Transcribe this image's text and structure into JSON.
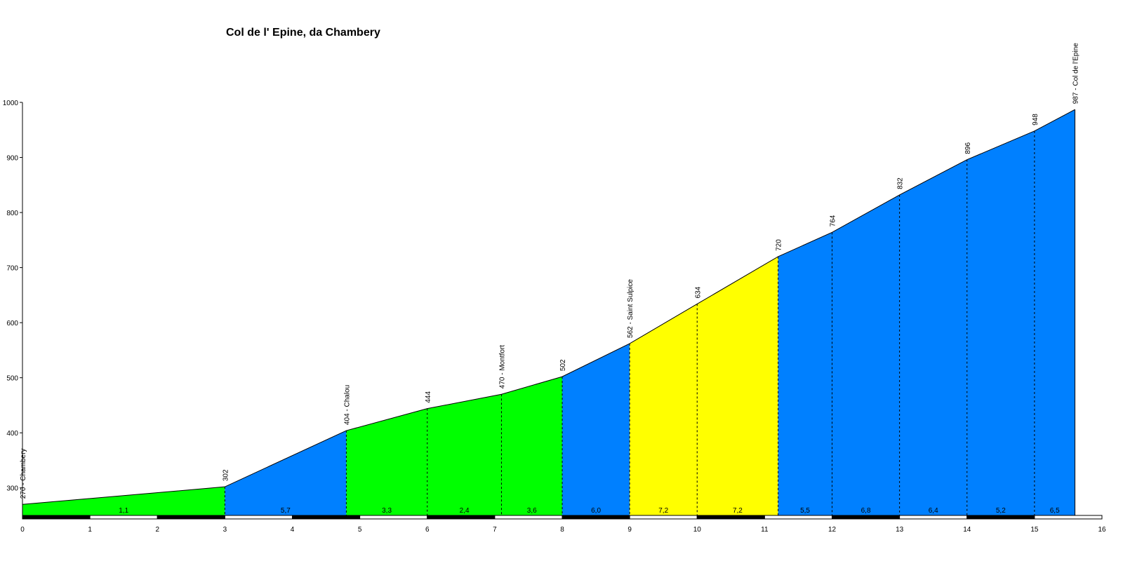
{
  "chart_data": {
    "type": "area",
    "title": "Col de l' Epine, da Chambery",
    "xlabel": "",
    "ylabel": "",
    "xlim": [
      0,
      16
    ],
    "ylim": [
      250,
      1000
    ],
    "yticks": [
      300,
      400,
      500,
      600,
      700,
      800,
      900,
      1000
    ],
    "xticks": [
      0,
      1,
      2,
      3,
      4,
      5,
      6,
      7,
      8,
      9,
      10,
      11,
      12,
      13,
      14,
      15,
      16
    ],
    "points": [
      {
        "x": 0,
        "y": 270,
        "label": "270 - Chambery"
      },
      {
        "x": 3,
        "y": 302,
        "label": "302"
      },
      {
        "x": 4.8,
        "y": 404,
        "label": "404 - Chalou"
      },
      {
        "x": 6,
        "y": 444,
        "label": "444"
      },
      {
        "x": 7.1,
        "y": 470,
        "label": "470 - Montfort"
      },
      {
        "x": 8,
        "y": 502,
        "label": "502"
      },
      {
        "x": 9,
        "y": 562,
        "label": "562 - Saint Sulpice"
      },
      {
        "x": 10,
        "y": 634,
        "label": "634"
      },
      {
        "x": 11.2,
        "y": 720,
        "label": "720"
      },
      {
        "x": 12,
        "y": 764,
        "label": "764"
      },
      {
        "x": 13,
        "y": 832,
        "label": "832"
      },
      {
        "x": 14,
        "y": 896,
        "label": "896"
      },
      {
        "x": 15,
        "y": 948,
        "label": "948"
      },
      {
        "x": 15.6,
        "y": 987,
        "label": "987 - Col de l'Epine"
      }
    ],
    "segments": [
      {
        "from": 0,
        "to": 3,
        "gradient": "1,1",
        "color": "#00ff00"
      },
      {
        "from": 3,
        "to": 4.8,
        "gradient": "5,7",
        "color": "#0080ff"
      },
      {
        "from": 4.8,
        "to": 6,
        "gradient": "3,3",
        "color": "#00ff00"
      },
      {
        "from": 6,
        "to": 7.1,
        "gradient": "2,4",
        "color": "#00ff00"
      },
      {
        "from": 7.1,
        "to": 8,
        "gradient": "3,6",
        "color": "#00ff00"
      },
      {
        "from": 8,
        "to": 9,
        "gradient": "6,0",
        "color": "#0080ff"
      },
      {
        "from": 9,
        "to": 10,
        "gradient": "7,2",
        "color": "#ffff00"
      },
      {
        "from": 10,
        "to": 11.2,
        "gradient": "7,2",
        "color": "#ffff00"
      },
      {
        "from": 11.2,
        "to": 12,
        "gradient": "5,5",
        "color": "#0080ff"
      },
      {
        "from": 12,
        "to": 13,
        "gradient": "6,8",
        "color": "#0080ff"
      },
      {
        "from": 13,
        "to": 14,
        "gradient": "6,4",
        "color": "#0080ff"
      },
      {
        "from": 14,
        "to": 15,
        "gradient": "5,2",
        "color": "#0080ff"
      },
      {
        "from": 15,
        "to": 15.6,
        "gradient": "6,5",
        "color": "#0080ff"
      }
    ]
  }
}
